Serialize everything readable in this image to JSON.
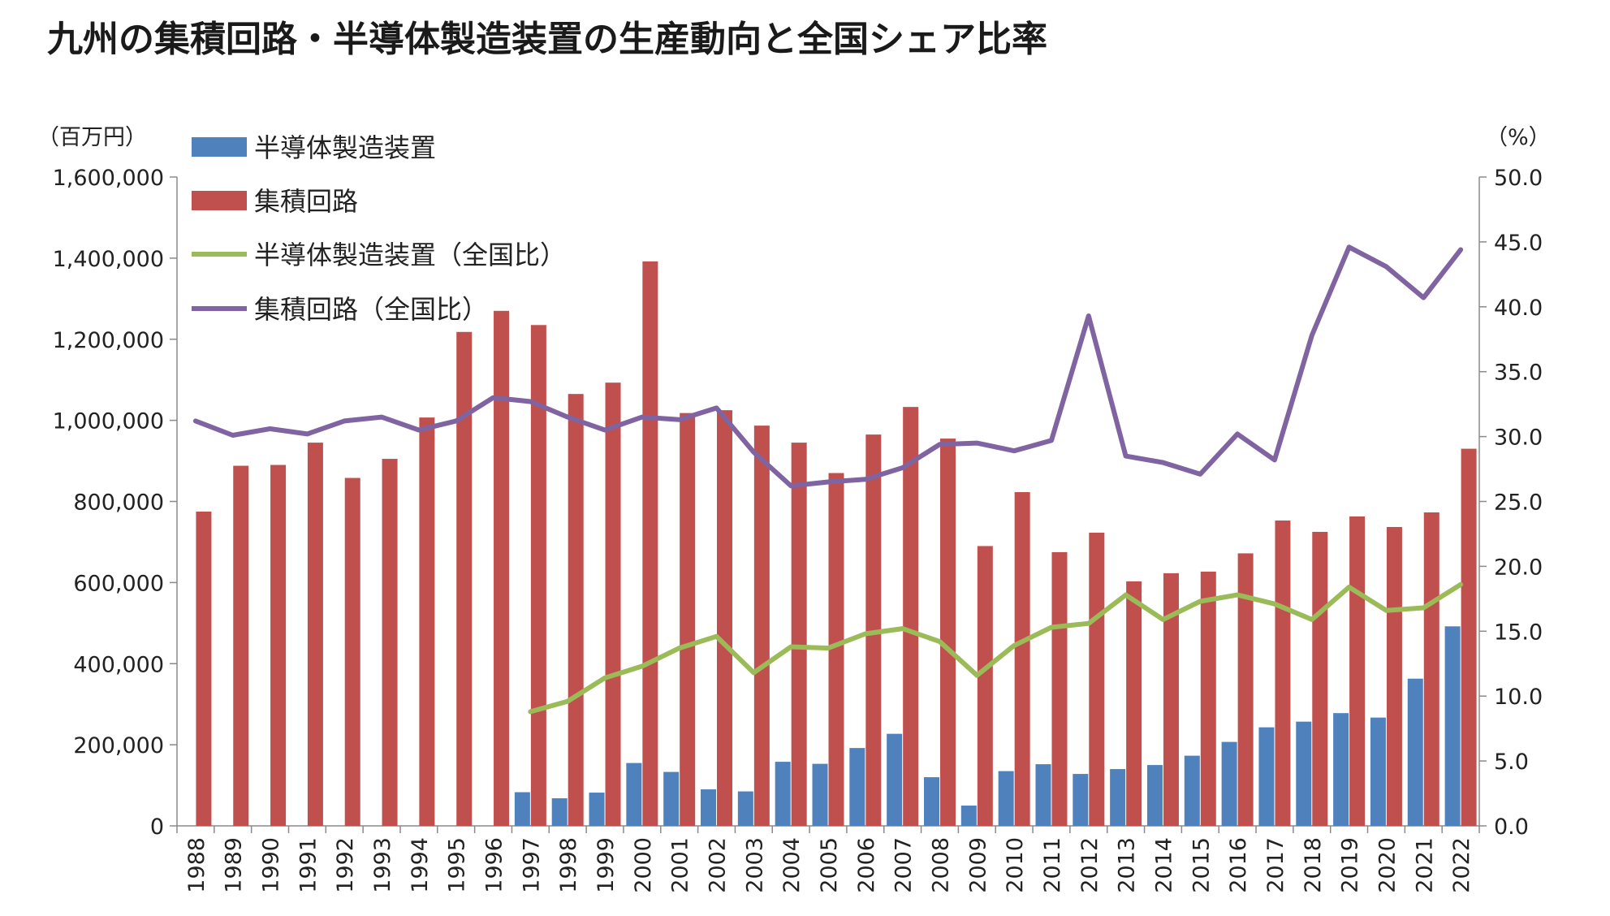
{
  "chart_data": {
    "type": "bar",
    "title": "九州の集積回路・半導体製造装置の生産動向と全国シェア比率",
    "y_left_unit": "（百万円）",
    "y_right_unit": "（%）",
    "y_left_range": [
      0,
      1600000
    ],
    "y_right_range": [
      0,
      50
    ],
    "y_left_ticks": [
      "0",
      "200,000",
      "400,000",
      "600,000",
      "800,000",
      "1,000,000",
      "1,200,000",
      "1,400,000",
      "1,600,000"
    ],
    "y_right_ticks": [
      "0.0",
      "5.0",
      "10.0",
      "15.0",
      "20.0",
      "25.0",
      "30.0",
      "35.0",
      "40.0",
      "45.0",
      "50.0"
    ],
    "categories": [
      "1988",
      "1989",
      "1990",
      "1991",
      "1992",
      "1993",
      "1994",
      "1995",
      "1996",
      "1997",
      "1998",
      "1999",
      "2000",
      "2001",
      "2002",
      "2003",
      "2004",
      "2005",
      "2006",
      "2007",
      "2008",
      "2009",
      "2010",
      "2011",
      "2012",
      "2013",
      "2014",
      "2015",
      "2016",
      "2017",
      "2018",
      "2019",
      "2020",
      "2021",
      "2022"
    ],
    "grid": false,
    "legend_position": "top-left",
    "series": [
      {
        "name": "半導体製造装置",
        "kind": "bar",
        "axis": "left",
        "color": "#4f81bd",
        "values": [
          null,
          null,
          null,
          null,
          null,
          null,
          null,
          null,
          null,
          83000,
          68000,
          82000,
          155000,
          133000,
          90000,
          85000,
          158000,
          153000,
          192000,
          227000,
          120000,
          50000,
          135000,
          152000,
          128000,
          140000,
          150000,
          173000,
          207000,
          243000,
          257000,
          278000,
          267000,
          363000,
          492000
        ]
      },
      {
        "name": "集積回路",
        "kind": "bar",
        "axis": "left",
        "color": "#c0504d",
        "values": [
          775000,
          888000,
          890000,
          945000,
          858000,
          905000,
          1007000,
          1218000,
          1270000,
          1235000,
          1065000,
          1093000,
          1392000,
          1018000,
          1025000,
          987000,
          945000,
          870000,
          965000,
          1033000,
          955000,
          690000,
          823000,
          675000,
          723000,
          603000,
          623000,
          627000,
          672000,
          753000,
          725000,
          763000,
          737000,
          773000,
          930000
        ]
      },
      {
        "name": "半導体製造装置（全国比）",
        "kind": "line",
        "axis": "right",
        "color": "#9bbb59",
        "values": [
          null,
          null,
          null,
          null,
          null,
          null,
          null,
          null,
          null,
          8.8,
          9.6,
          11.4,
          12.3,
          13.7,
          14.6,
          11.8,
          13.8,
          13.7,
          14.8,
          15.2,
          14.2,
          11.6,
          13.9,
          15.3,
          15.6,
          17.8,
          15.9,
          17.3,
          17.8,
          17.1,
          15.9,
          18.4,
          16.6,
          16.8,
          18.6
        ]
      },
      {
        "name": "集積回路（全国比）",
        "kind": "line",
        "axis": "right",
        "color": "#8064a2",
        "values": [
          31.2,
          30.1,
          30.6,
          30.2,
          31.2,
          31.5,
          30.5,
          31.2,
          33.0,
          32.7,
          31.5,
          30.5,
          31.5,
          31.3,
          32.2,
          28.8,
          26.2,
          26.5,
          26.7,
          27.6,
          29.4,
          29.5,
          28.9,
          29.7,
          39.3,
          28.5,
          28.0,
          27.1,
          30.2,
          28.2,
          37.8,
          44.6,
          43.1,
          40.7,
          44.4
        ]
      }
    ]
  }
}
